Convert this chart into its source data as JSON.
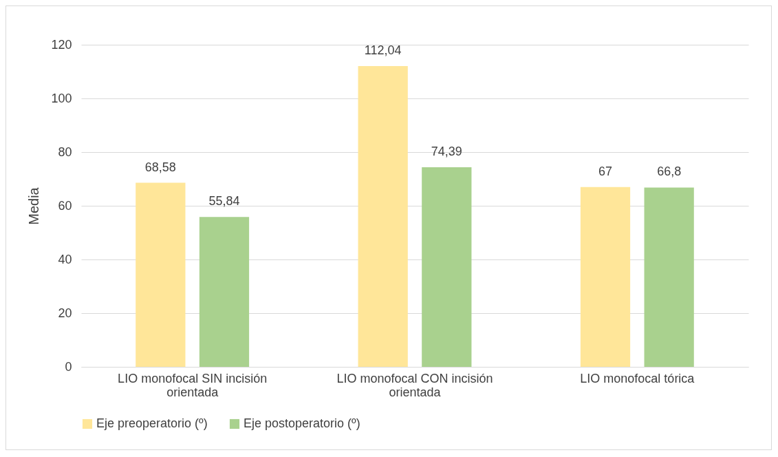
{
  "chart_data": {
    "type": "bar",
    "ylabel": "Media",
    "categories": [
      "LIO monofocal SIN incisión orientada",
      "LIO monofocal CON incisión orientada",
      "LIO monofocal tórica"
    ],
    "series": [
      {
        "name": "Eje preoperatorio (º)",
        "color": "#ffe699",
        "values": [
          68.58,
          112.04,
          67
        ],
        "value_labels": [
          "68,58",
          "112,04",
          "67"
        ]
      },
      {
        "name": "Eje postoperatorio (º)",
        "color": "#a9d18e",
        "values": [
          55.84,
          74.39,
          66.8
        ],
        "value_labels": [
          "55,84",
          "74,39",
          "66,8"
        ]
      }
    ],
    "ylim": [
      0,
      120
    ],
    "yticks": [
      0,
      20,
      40,
      60,
      80,
      100,
      120
    ],
    "grid": "y",
    "legend": "bottom"
  }
}
